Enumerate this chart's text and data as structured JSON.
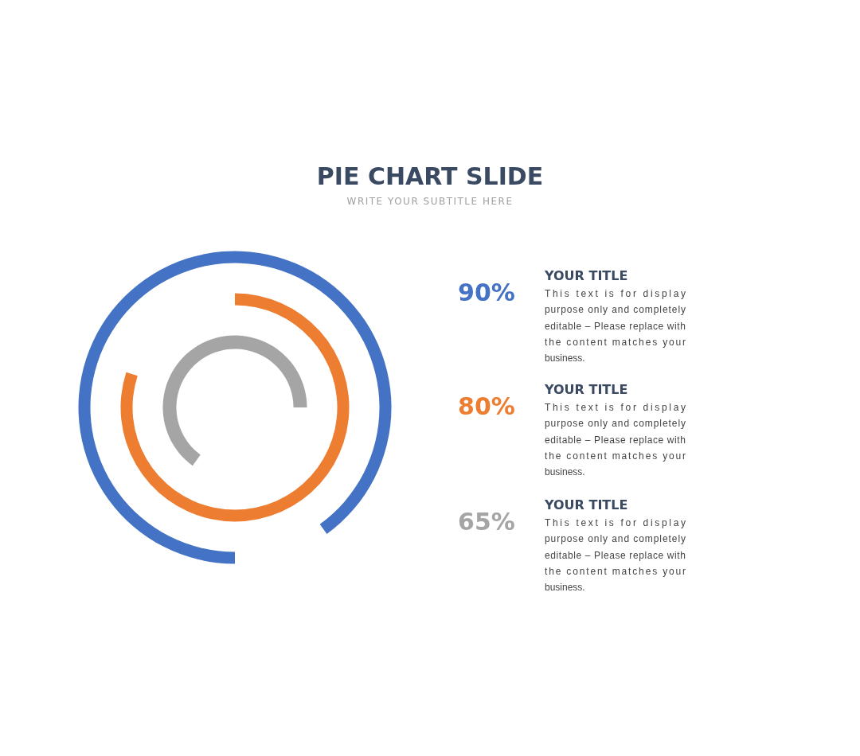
{
  "chart_data": {
    "type": "other",
    "title": "PIE CHART SLIDE",
    "subtitle": "WRITE YOUR SUBTITLE HERE",
    "categories": [
      "YOUR TITLE",
      "YOUR TITLE",
      "YOUR TITLE"
    ],
    "values": [
      90,
      80,
      65
    ],
    "colors": [
      "#4472c4",
      "#ed7d31",
      "#a5a5a5"
    ],
    "value_labels": [
      "90%",
      "80%",
      "65%"
    ],
    "annotations": [
      "This text is for display purpose only and completely editable – Please replace with the content matches your business.",
      "This text is for display purpose only and completely editable – Please replace with the content matches your business.",
      "This text is for display purpose only and completely editable – Please replace with the content matches your business."
    ]
  }
}
